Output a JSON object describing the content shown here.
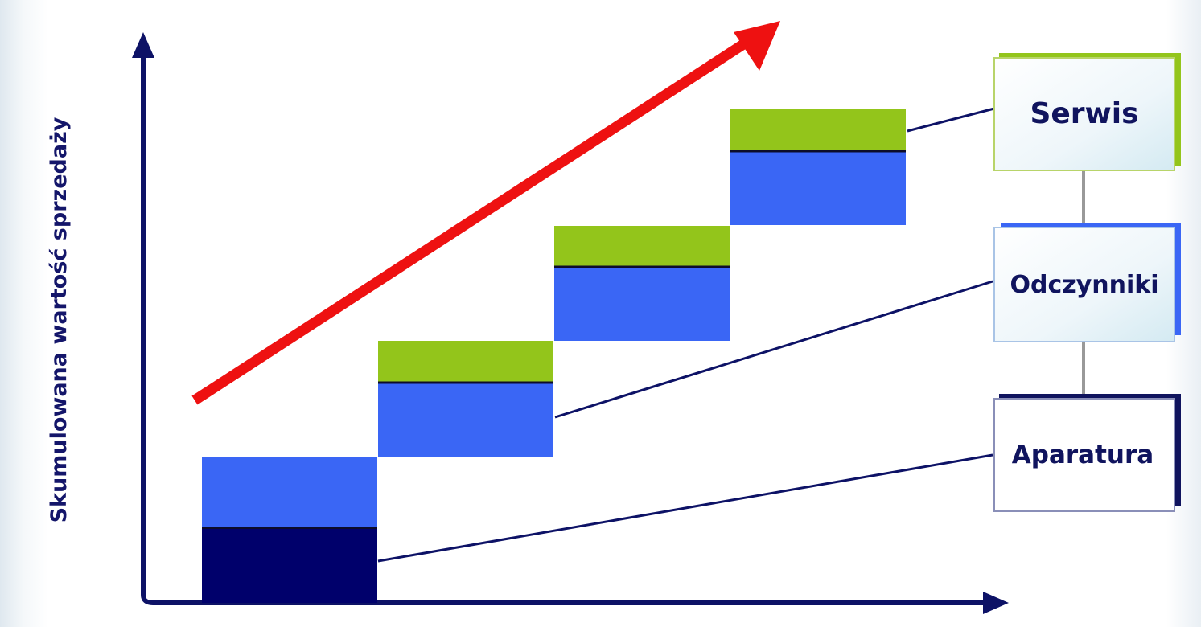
{
  "y_axis_label": "Skumulowana wartość sprzedaży",
  "legend": {
    "serwis": "Serwis",
    "odczynniki": "Odczynniki",
    "aparatura": "Aparatura"
  },
  "colors": {
    "axis": "#0d1266",
    "aparatura": "#00006b",
    "odczynniki": "#3a66f5",
    "serwis": "#93c51b",
    "growth_arrow": "#ee1111"
  }
}
